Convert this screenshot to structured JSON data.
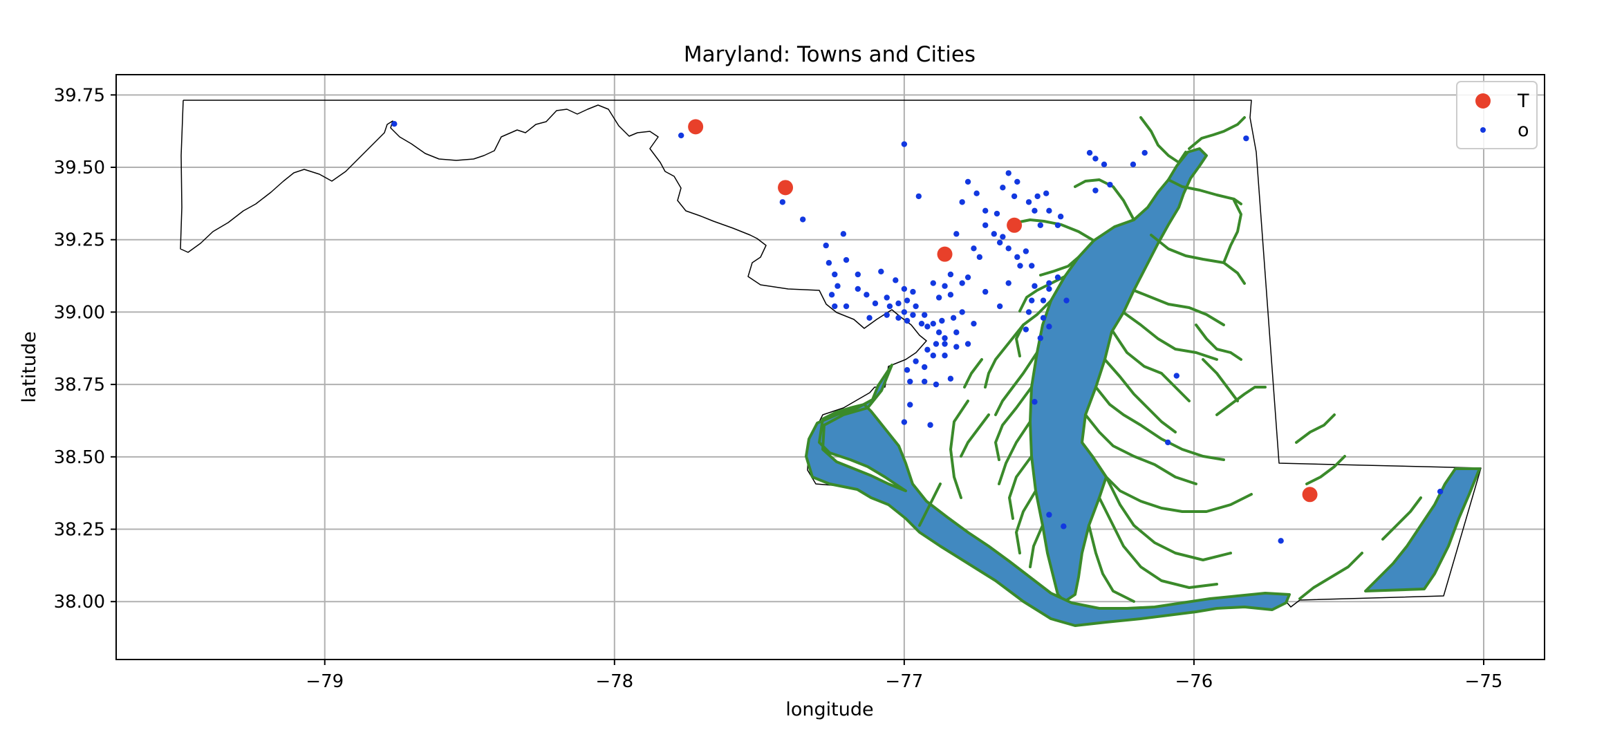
{
  "chart_data": {
    "type": "scatter",
    "title": "Maryland: Towns and Cities",
    "xlabel": "longitude",
    "ylabel": "latitude",
    "xlim": [
      -79.72,
      -74.79
    ],
    "ylim": [
      37.8,
      39.82
    ],
    "x_ticks": [
      -79,
      -78,
      -77,
      -76,
      -75
    ],
    "x_tick_labels": [
      "−79",
      "−78",
      "−77",
      "−76",
      "−75"
    ],
    "y_ticks": [
      38.0,
      38.25,
      38.5,
      38.75,
      39.0,
      39.25,
      39.5,
      39.75
    ],
    "y_tick_labels": [
      "38.00",
      "38.25",
      "38.50",
      "38.75",
      "39.00",
      "39.25",
      "39.50",
      "39.75"
    ],
    "grid": true,
    "legend_position": "top-right",
    "colors": {
      "T": "#e8402a",
      "o": "#1238e0",
      "water": "#4189c0",
      "shore": "#3a8a2a",
      "border": "#000000"
    },
    "series": [
      {
        "name": "T",
        "marker": "large-circle",
        "points": [
          [
            -77.72,
            39.64
          ],
          [
            -77.41,
            39.43
          ],
          [
            -76.86,
            39.2
          ],
          [
            -76.62,
            39.3
          ],
          [
            -75.6,
            38.37
          ]
        ]
      },
      {
        "name": "o",
        "marker": "small-dot",
        "points": [
          [
            -78.76,
            39.65
          ],
          [
            -77.77,
            39.61
          ],
          [
            -77.42,
            39.38
          ],
          [
            -77.35,
            39.32
          ],
          [
            -77.0,
            39.58
          ],
          [
            -76.95,
            39.4
          ],
          [
            -76.78,
            39.45
          ],
          [
            -76.75,
            39.41
          ],
          [
            -76.8,
            39.38
          ],
          [
            -76.72,
            39.35
          ],
          [
            -76.68,
            39.34
          ],
          [
            -76.64,
            39.48
          ],
          [
            -76.66,
            39.43
          ],
          [
            -76.61,
            39.45
          ],
          [
            -76.62,
            39.4
          ],
          [
            -76.57,
            39.38
          ],
          [
            -76.54,
            39.4
          ],
          [
            -76.51,
            39.41
          ],
          [
            -76.55,
            39.35
          ],
          [
            -76.5,
            39.35
          ],
          [
            -76.46,
            39.33
          ],
          [
            -76.53,
            39.3
          ],
          [
            -76.47,
            39.3
          ],
          [
            -76.72,
            39.3
          ],
          [
            -76.66,
            39.26
          ],
          [
            -76.69,
            39.27
          ],
          [
            -76.82,
            39.27
          ],
          [
            -76.76,
            39.22
          ],
          [
            -76.74,
            39.19
          ],
          [
            -76.67,
            39.24
          ],
          [
            -76.64,
            39.22
          ],
          [
            -76.61,
            39.19
          ],
          [
            -76.58,
            39.21
          ],
          [
            -76.6,
            39.16
          ],
          [
            -76.56,
            39.16
          ],
          [
            -76.55,
            39.09
          ],
          [
            -76.5,
            39.08
          ],
          [
            -76.47,
            39.12
          ],
          [
            -76.52,
            39.04
          ],
          [
            -76.57,
            39.0
          ],
          [
            -76.52,
            38.98
          ],
          [
            -76.5,
            38.95
          ],
          [
            -76.5,
            39.1
          ],
          [
            -76.64,
            39.1
          ],
          [
            -76.67,
            39.02
          ],
          [
            -76.72,
            39.07
          ],
          [
            -76.78,
            39.12
          ],
          [
            -76.8,
            39.1
          ],
          [
            -76.84,
            39.13
          ],
          [
            -76.86,
            39.09
          ],
          [
            -76.9,
            39.1
          ],
          [
            -76.88,
            39.05
          ],
          [
            -76.84,
            39.06
          ],
          [
            -76.8,
            39.0
          ],
          [
            -76.76,
            38.96
          ],
          [
            -76.83,
            38.98
          ],
          [
            -76.87,
            38.97
          ],
          [
            -76.9,
            38.96
          ],
          [
            -76.93,
            38.99
          ],
          [
            -76.96,
            39.02
          ],
          [
            -76.99,
            39.04
          ],
          [
            -76.97,
            39.07
          ],
          [
            -77.0,
            39.08
          ],
          [
            -77.02,
            39.03
          ],
          [
            -77.06,
            39.05
          ],
          [
            -77.05,
            39.02
          ],
          [
            -77.1,
            39.03
          ],
          [
            -77.13,
            39.06
          ],
          [
            -77.16,
            39.13
          ],
          [
            -77.08,
            39.14
          ],
          [
            -77.03,
            39.11
          ],
          [
            -77.16,
            39.08
          ],
          [
            -77.2,
            39.18
          ],
          [
            -77.23,
            39.09
          ],
          [
            -77.24,
            39.13
          ],
          [
            -77.26,
            39.17
          ],
          [
            -77.27,
            39.23
          ],
          [
            -77.25,
            39.06
          ],
          [
            -77.24,
            39.02
          ],
          [
            -77.2,
            39.02
          ],
          [
            -77.12,
            38.98
          ],
          [
            -77.06,
            38.99
          ],
          [
            -77.02,
            38.98
          ],
          [
            -77.0,
            39.0
          ],
          [
            -76.99,
            38.97
          ],
          [
            -76.97,
            38.99
          ],
          [
            -76.94,
            38.96
          ],
          [
            -76.92,
            38.95
          ],
          [
            -76.88,
            38.93
          ],
          [
            -76.86,
            38.91
          ],
          [
            -76.82,
            38.93
          ],
          [
            -76.78,
            38.89
          ],
          [
            -76.82,
            38.88
          ],
          [
            -76.86,
            38.89
          ],
          [
            -76.89,
            38.89
          ],
          [
            -76.92,
            38.87
          ],
          [
            -76.9,
            38.85
          ],
          [
            -76.86,
            38.85
          ],
          [
            -76.93,
            38.81
          ],
          [
            -76.96,
            38.83
          ],
          [
            -76.99,
            38.8
          ],
          [
            -76.98,
            38.76
          ],
          [
            -76.93,
            38.76
          ],
          [
            -76.89,
            38.75
          ],
          [
            -76.84,
            38.77
          ],
          [
            -76.98,
            38.68
          ],
          [
            -77.0,
            38.62
          ],
          [
            -76.91,
            38.61
          ],
          [
            -77.21,
            39.27
          ],
          [
            -76.36,
            39.55
          ],
          [
            -76.34,
            39.53
          ],
          [
            -76.31,
            39.51
          ],
          [
            -76.34,
            39.42
          ],
          [
            -76.29,
            39.44
          ],
          [
            -76.21,
            39.51
          ],
          [
            -76.17,
            39.55
          ],
          [
            -75.82,
            39.6
          ],
          [
            -76.58,
            38.94
          ],
          [
            -76.53,
            38.91
          ],
          [
            -76.06,
            38.78
          ],
          [
            -76.09,
            38.55
          ],
          [
            -76.55,
            38.69
          ],
          [
            -76.5,
            38.3
          ],
          [
            -76.45,
            38.26
          ],
          [
            -75.7,
            38.21
          ],
          [
            -75.15,
            38.38
          ],
          [
            -76.44,
            39.04
          ],
          [
            -76.56,
            39.04
          ]
        ]
      }
    ],
    "map_layers": [
      "state-border",
      "chesapeake-bay-water",
      "shoreline"
    ]
  }
}
